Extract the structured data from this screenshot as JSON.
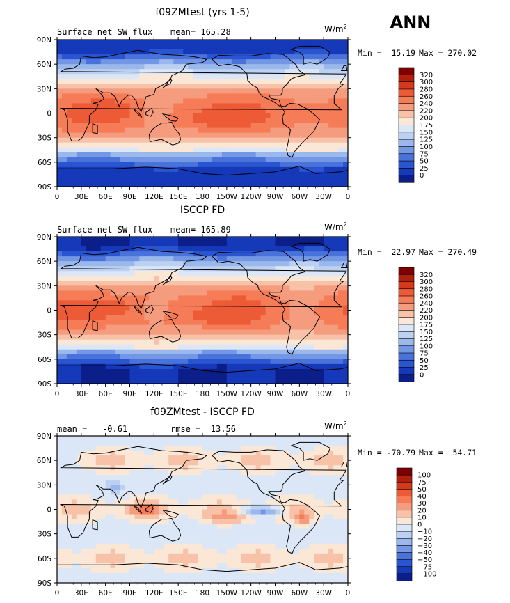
{
  "page": {
    "season": "ANN"
  },
  "colors": {
    "frame": "#000000",
    "coast": "#000000"
  },
  "panels": [
    {
      "title": "f09ZMtest (yrs 1-5)",
      "left_label": "Surface net SW flux",
      "mid_label": "mean= 165.28",
      "units": "W/m",
      "units_sup": "2",
      "min_text": "Min =  15.19",
      "max_text": "Max = 270.02",
      "levels": [
        "320",
        "300",
        "280",
        "260",
        "240",
        "220",
        "200",
        "175",
        "150",
        "125",
        "100",
        "75",
        "50",
        "25",
        "0"
      ],
      "colors": [
        "#7f0000",
        "#b21f0e",
        "#d4391c",
        "#ec5a36",
        "#f57c57",
        "#f69c7e",
        "#f7c2a8",
        "#fbe7d6",
        "#dbe6f6",
        "#bcd1f1",
        "#9bb8ec",
        "#7397e5",
        "#4a72db",
        "#2a55d0",
        "#1539b8",
        "#0b1e8a"
      ],
      "field": "sw_model",
      "xlabels": [
        "0",
        "30E",
        "60E",
        "90E",
        "120E",
        "150E",
        "180",
        "150W",
        "120W",
        "90W",
        "60W",
        "30W",
        "0"
      ],
      "ylabels": [
        "90N",
        "60N",
        "30N",
        "0",
        "30S",
        "60S",
        "90S"
      ]
    },
    {
      "title": "ISCCP FD",
      "left_label": "Surface net SW flux",
      "mid_label": "mean= 165.89",
      "units": "W/m",
      "units_sup": "2",
      "min_text": "Min =  22.97",
      "max_text": "Max = 270.49",
      "levels": [
        "320",
        "300",
        "280",
        "260",
        "240",
        "220",
        "200",
        "175",
        "150",
        "125",
        "100",
        "75",
        "50",
        "25",
        "0"
      ],
      "colors": [
        "#7f0000",
        "#b21f0e",
        "#d4391c",
        "#ec5a36",
        "#f57c57",
        "#f69c7e",
        "#f7c2a8",
        "#fbe7d6",
        "#dbe6f6",
        "#bcd1f1",
        "#9bb8ec",
        "#7397e5",
        "#4a72db",
        "#2a55d0",
        "#1539b8",
        "#0b1e8a"
      ],
      "field": "sw_obs",
      "xlabels": [
        "0",
        "30E",
        "60E",
        "90E",
        "120E",
        "150E",
        "180",
        "150W",
        "120W",
        "90W",
        "60W",
        "30W",
        "0"
      ],
      "ylabels": [
        "90N",
        "60N",
        "30N",
        "0",
        "30S",
        "60S",
        "90S"
      ]
    },
    {
      "title": "f09ZMtest - ISCCP FD",
      "left_label": "mean =   -0.61",
      "mid_label": "rmse =  13.56",
      "units": "W/m",
      "units_sup": "2",
      "min_text": "Min = -70.79",
      "max_text": "Max =  54.71",
      "levels": [
        "100",
        "75",
        "50",
        "40",
        "30",
        "20",
        "10",
        "0",
        "−10",
        "−20",
        "−30",
        "−40",
        "−50",
        "−75",
        "−100"
      ],
      "colors": [
        "#7f0000",
        "#b21f0e",
        "#d4391c",
        "#ec5a36",
        "#f57c57",
        "#f69c7e",
        "#f7c2a8",
        "#fbe7d6",
        "#dbe6f6",
        "#bcd1f1",
        "#9bb8ec",
        "#7397e5",
        "#4a72db",
        "#2a55d0",
        "#1539b8",
        "#0b1e8a"
      ],
      "field": "sw_diff",
      "xlabels": [
        "0",
        "30E",
        "60E",
        "90E",
        "120E",
        "150E",
        "180",
        "150W",
        "120W",
        "90W",
        "60W",
        "30W",
        "0"
      ],
      "ylabels": [
        "90N",
        "60N",
        "30N",
        "0",
        "30S",
        "60S",
        "90S"
      ]
    }
  ]
}
